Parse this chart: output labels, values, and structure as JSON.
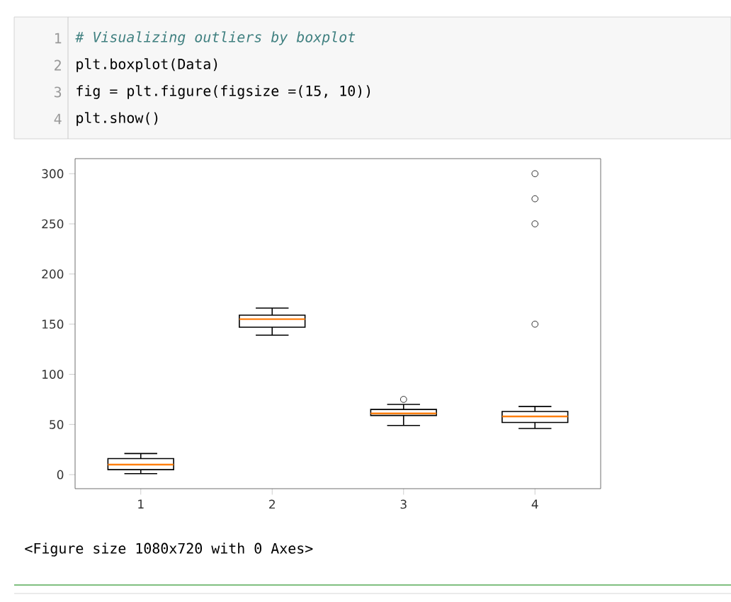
{
  "chart_data": {
    "type": "box",
    "categories": [
      "1",
      "2",
      "3",
      "4"
    ],
    "boxes": [
      {
        "low": 1,
        "q1": 5,
        "median": 10,
        "q3": 16,
        "high": 21
      },
      {
        "low": 139,
        "q1": 147,
        "median": 155,
        "q3": 159,
        "high": 166
      },
      {
        "low": 49,
        "q1": 59,
        "median": 61,
        "q3": 65,
        "high": 70,
        "outliers": [
          75
        ]
      },
      {
        "low": 46,
        "q1": 52,
        "median": 58,
        "q3": 63,
        "high": 68,
        "outliers": [
          150,
          250,
          275,
          300
        ]
      }
    ],
    "ylim": [
      -14,
      315
    ],
    "yticks": [
      0,
      50,
      100,
      150,
      200,
      250,
      300
    ],
    "annotations": [
      "1",
      "# Visualizing outliers by boxplot",
      "2",
      "plt.boxplot(Data)",
      "3",
      "fig = plt.figure(figsize =(15, 10))",
      "4",
      "plt.show()",
      "<Figure size 1080x720 with 0 Axes>"
    ]
  }
}
